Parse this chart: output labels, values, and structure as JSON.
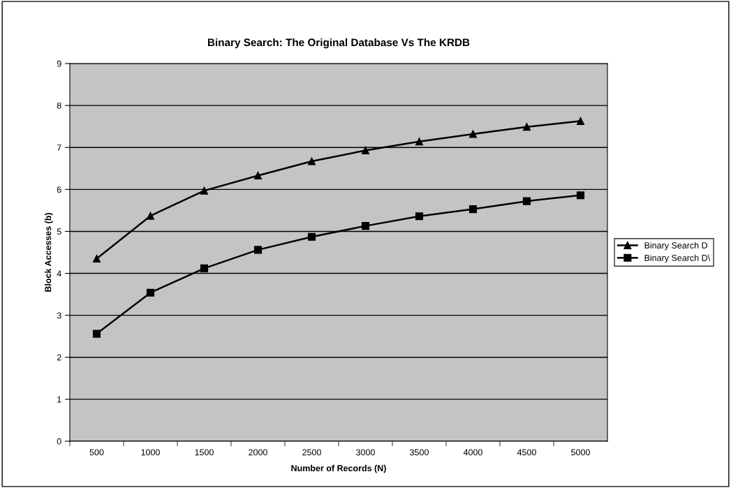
{
  "chart_data": {
    "type": "line",
    "title": "Binary Search: The Original Database Vs The KRDB",
    "xlabel": "Number of Records (N)",
    "ylabel": "Block Accesses (b)",
    "categories": [
      "500",
      "1000",
      "1500",
      "2000",
      "2500",
      "3000",
      "3500",
      "4000",
      "4500",
      "5000"
    ],
    "series": [
      {
        "name": "Binary Search D",
        "color": "#000000",
        "marker": "triangle",
        "values": [
          4.35,
          5.37,
          5.97,
          6.33,
          6.67,
          6.93,
          7.14,
          7.32,
          7.49,
          7.63
        ]
      },
      {
        "name": "Binary Search D\\",
        "color": "#000000",
        "marker": "square",
        "values": [
          2.56,
          3.54,
          4.12,
          4.56,
          4.87,
          5.13,
          5.36,
          5.53,
          5.72,
          5.86
        ]
      }
    ],
    "ylim": [
      0,
      9
    ],
    "yticks": [
      0,
      1,
      2,
      3,
      4,
      5,
      6,
      7,
      8,
      9
    ],
    "grid": "y",
    "legend": "right",
    "line_style": "solid"
  }
}
